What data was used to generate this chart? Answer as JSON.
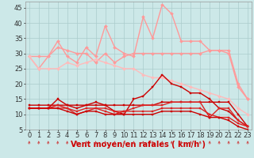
{
  "x": [
    0,
    1,
    2,
    3,
    4,
    5,
    6,
    7,
    8,
    9,
    10,
    11,
    12,
    13,
    14,
    15,
    16,
    17,
    18,
    19,
    20,
    21,
    22,
    23
  ],
  "series": [
    {
      "name": "rafales_high",
      "color": "#ff9999",
      "lw": 1.0,
      "marker": "D",
      "ms": 2.0,
      "values": [
        29,
        25,
        29,
        34,
        29,
        27,
        32,
        29,
        39,
        32,
        30,
        29,
        42,
        35,
        46,
        43,
        34,
        34,
        34,
        31,
        31,
        30,
        19,
        15
      ]
    },
    {
      "name": "rafales_mid",
      "color": "#ff9999",
      "lw": 1.0,
      "marker": "D",
      "ms": 2.0,
      "values": [
        29,
        29,
        29,
        32,
        31,
        30,
        30,
        27,
        30,
        27,
        29,
        30,
        30,
        30,
        30,
        30,
        30,
        30,
        30,
        31,
        31,
        31,
        20,
        15
      ]
    },
    {
      "name": "rafales_low",
      "color": "#ffbbbb",
      "lw": 1.0,
      "marker": "D",
      "ms": 2.0,
      "values": [
        29,
        25,
        25,
        25,
        27,
        26,
        27,
        28,
        27,
        26,
        25,
        25,
        23,
        22,
        22,
        21,
        20,
        19,
        18,
        17,
        16,
        15,
        12,
        10
      ]
    },
    {
      "name": "vent_high",
      "color": "#cc0000",
      "lw": 1.0,
      "marker": "s",
      "ms": 2.0,
      "values": [
        12,
        12,
        12,
        15,
        13,
        12,
        13,
        14,
        13,
        11,
        10,
        15,
        16,
        19,
        23,
        20,
        19,
        17,
        17,
        15,
        12,
        11,
        8,
        6
      ]
    },
    {
      "name": "vent_mid",
      "color": "#cc0000",
      "lw": 1.0,
      "marker": "s",
      "ms": 2.0,
      "values": [
        13,
        13,
        13,
        13,
        13,
        13,
        13,
        13,
        13,
        13,
        13,
        13,
        13,
        13,
        14,
        14,
        14,
        14,
        14,
        14,
        14,
        14,
        10,
        6
      ]
    },
    {
      "name": "vent_low1",
      "color": "#dd2222",
      "lw": 1.0,
      "marker": "s",
      "ms": 2.0,
      "values": [
        12,
        12,
        12,
        13,
        12,
        11,
        12,
        12,
        12,
        11,
        11,
        12,
        13,
        13,
        13,
        14,
        14,
        14,
        14,
        9,
        12,
        12,
        8,
        6
      ]
    },
    {
      "name": "vent_low2",
      "color": "#dd2222",
      "lw": 1.0,
      "marker": "s",
      "ms": 2.0,
      "values": [
        12,
        12,
        12,
        12,
        12,
        10,
        11,
        12,
        11,
        10,
        11,
        11,
        11,
        11,
        12,
        12,
        12,
        12,
        12,
        10,
        9,
        9,
        7,
        6
      ]
    },
    {
      "name": "vent_lowest",
      "color": "#cc0000",
      "lw": 1.0,
      "marker": "s",
      "ms": 2.0,
      "values": [
        12,
        12,
        12,
        12,
        11,
        10,
        11,
        11,
        10,
        10,
        10,
        10,
        10,
        10,
        11,
        11,
        11,
        11,
        10,
        9,
        9,
        8,
        6,
        5
      ]
    }
  ],
  "xlabel": "Vent moyen/en rafales ( km/h )",
  "xlim": [
    0,
    23
  ],
  "ylim": [
    5,
    47
  ],
  "yticks": [
    5,
    10,
    15,
    20,
    25,
    30,
    35,
    40,
    45
  ],
  "xticks": [
    0,
    1,
    2,
    3,
    4,
    5,
    6,
    7,
    8,
    9,
    10,
    11,
    12,
    13,
    14,
    15,
    16,
    17,
    18,
    19,
    20,
    21,
    22,
    23
  ],
  "bg_color": "#cce8e8",
  "grid_color": "#aacccc",
  "xlabel_color": "#cc0000",
  "xlabel_fontsize": 7,
  "tick_fontsize": 6,
  "arrow_color": "#cc4444"
}
